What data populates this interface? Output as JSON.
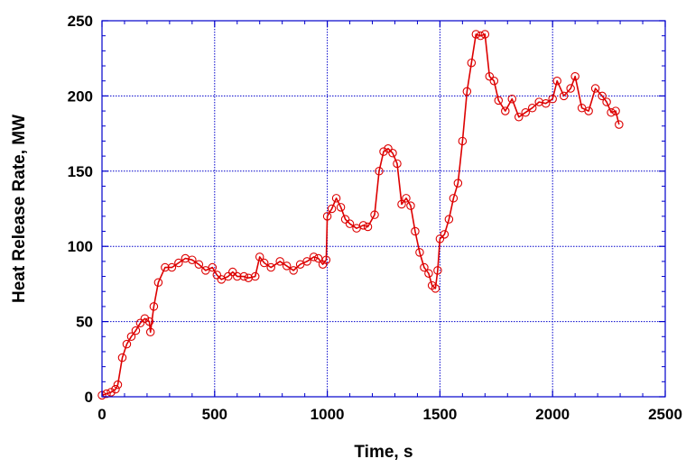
{
  "chart_data": {
    "type": "line",
    "title": "",
    "xlabel": "Time, s",
    "ylabel": "Heat Release Rate,  MW",
    "xlim": [
      0,
      2500
    ],
    "ylim": [
      0,
      250
    ],
    "xticks": [
      0,
      500,
      1000,
      1500,
      2000,
      2500
    ],
    "yticks": [
      0,
      50,
      100,
      150,
      200,
      250
    ],
    "grid": true,
    "legend": "none",
    "colors": {
      "series": "#dd0000",
      "grid": "#0000cc",
      "axis": "#0000cc"
    },
    "series": [
      {
        "name": "",
        "marker": "open-circle",
        "values": [
          [
            0,
            1
          ],
          [
            20,
            2
          ],
          [
            40,
            3
          ],
          [
            60,
            5
          ],
          [
            70,
            8
          ],
          [
            90,
            26
          ],
          [
            110,
            35
          ],
          [
            130,
            40
          ],
          [
            150,
            44
          ],
          [
            170,
            49
          ],
          [
            190,
            52
          ],
          [
            210,
            50
          ],
          [
            215,
            43
          ],
          [
            230,
            60
          ],
          [
            250,
            76
          ],
          [
            280,
            86
          ],
          [
            310,
            86
          ],
          [
            340,
            89
          ],
          [
            370,
            92
          ],
          [
            400,
            91
          ],
          [
            430,
            88
          ],
          [
            460,
            84
          ],
          [
            490,
            86
          ],
          [
            510,
            81
          ],
          [
            530,
            78
          ],
          [
            560,
            80
          ],
          [
            580,
            83
          ],
          [
            600,
            80
          ],
          [
            630,
            80
          ],
          [
            650,
            79
          ],
          [
            680,
            80
          ],
          [
            700,
            93
          ],
          [
            720,
            89
          ],
          [
            750,
            86
          ],
          [
            790,
            90
          ],
          [
            820,
            87
          ],
          [
            850,
            84
          ],
          [
            880,
            88
          ],
          [
            910,
            90
          ],
          [
            940,
            93
          ],
          [
            960,
            92
          ],
          [
            980,
            88
          ],
          [
            995,
            91
          ],
          [
            1000,
            120
          ],
          [
            1020,
            125
          ],
          [
            1040,
            132
          ],
          [
            1060,
            126
          ],
          [
            1080,
            118
          ],
          [
            1100,
            115
          ],
          [
            1130,
            112
          ],
          [
            1160,
            114
          ],
          [
            1180,
            113
          ],
          [
            1210,
            121
          ],
          [
            1230,
            150
          ],
          [
            1250,
            163
          ],
          [
            1270,
            165
          ],
          [
            1290,
            162
          ],
          [
            1310,
            155
          ],
          [
            1330,
            128
          ],
          [
            1350,
            132
          ],
          [
            1370,
            127
          ],
          [
            1390,
            110
          ],
          [
            1410,
            96
          ],
          [
            1430,
            86
          ],
          [
            1450,
            82
          ],
          [
            1465,
            74
          ],
          [
            1480,
            72
          ],
          [
            1490,
            84
          ],
          [
            1500,
            105
          ],
          [
            1520,
            108
          ],
          [
            1540,
            118
          ],
          [
            1560,
            132
          ],
          [
            1580,
            142
          ],
          [
            1600,
            170
          ],
          [
            1620,
            203
          ],
          [
            1640,
            222
          ],
          [
            1660,
            241
          ],
          [
            1680,
            240
          ],
          [
            1700,
            241
          ],
          [
            1720,
            213
          ],
          [
            1740,
            210
          ],
          [
            1760,
            197
          ],
          [
            1790,
            190
          ],
          [
            1820,
            198
          ],
          [
            1850,
            186
          ],
          [
            1880,
            189
          ],
          [
            1910,
            192
          ],
          [
            1940,
            196
          ],
          [
            1970,
            195
          ],
          [
            2000,
            198
          ],
          [
            2020,
            210
          ],
          [
            2050,
            200
          ],
          [
            2080,
            205
          ],
          [
            2100,
            213
          ],
          [
            2130,
            192
          ],
          [
            2160,
            190
          ],
          [
            2190,
            205
          ],
          [
            2220,
            200
          ],
          [
            2240,
            196
          ],
          [
            2260,
            189
          ],
          [
            2280,
            190
          ],
          [
            2295,
            181
          ]
        ]
      }
    ]
  }
}
